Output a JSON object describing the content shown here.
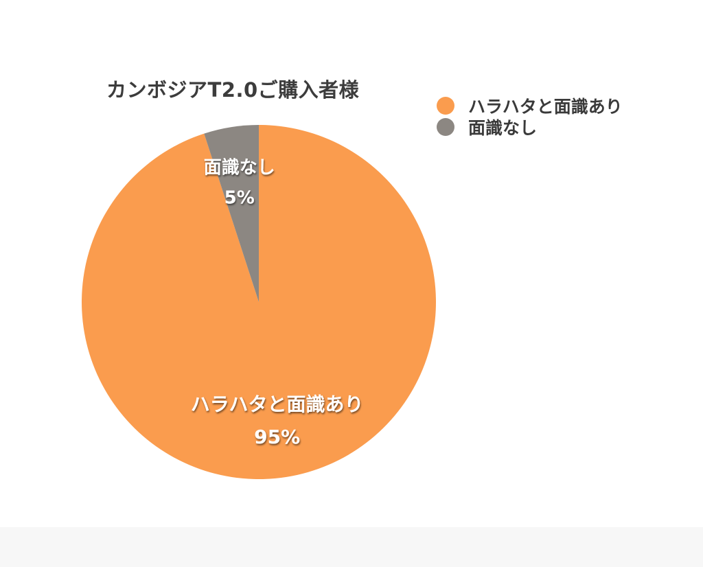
{
  "chart_data": {
    "type": "pie",
    "title": "カンボジアT2.0ご購入者様",
    "slices": [
      {
        "label": "ハラハタと面識あり",
        "value": 95,
        "value_label": "95%",
        "color": "#fa9c4e"
      },
      {
        "label": "面識なし",
        "value": 5,
        "value_label": "5%",
        "color": "#8c8782"
      }
    ],
    "legend_position": "top-right",
    "start_angle": "12 o'clock",
    "direction": "clockwise"
  }
}
